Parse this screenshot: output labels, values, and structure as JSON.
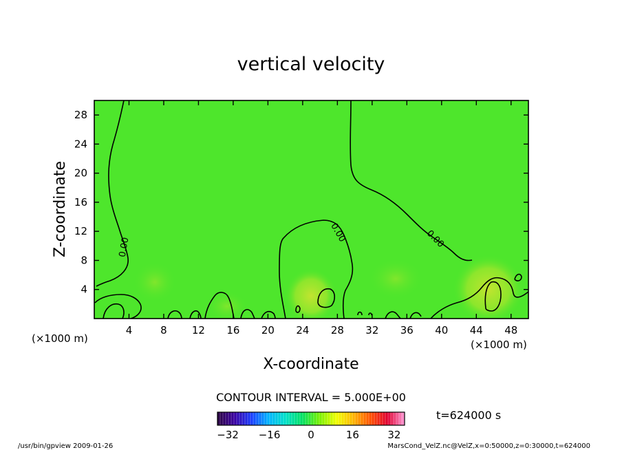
{
  "chart_data": {
    "type": "heatmap",
    "title": "vertical velocity",
    "xlabel": "X-coordinate",
    "ylabel": "Z-coordinate",
    "x_unit": "(×1000 m)",
    "y_unit": "(×1000 m)",
    "xlim": [
      0,
      50
    ],
    "ylim": [
      0,
      30
    ],
    "x_ticks": [
      4,
      8,
      12,
      16,
      20,
      24,
      28,
      32,
      36,
      40,
      44,
      48
    ],
    "y_ticks": [
      4,
      8,
      12,
      16,
      20,
      24,
      28
    ],
    "contour_interval_text": "CONTOUR INTERVAL = 5.000E+00",
    "contour_labels": [
      "0.00",
      "0.00",
      "0.00"
    ],
    "time_text": "t=624000 s",
    "colorbar": {
      "ticks": [
        -32,
        -16,
        0,
        16,
        32
      ],
      "range": [
        -36,
        36
      ],
      "colors": [
        "#2a0040",
        "#3a00a0",
        "#1a3cff",
        "#00b4ff",
        "#00e0c8",
        "#00e060",
        "#78f000",
        "#f0ff00",
        "#ffb400",
        "#ff5000",
        "#e00030",
        "#ff9ad8"
      ]
    },
    "field_colors": {
      "background": "#4ee62c",
      "warm": "#a8e62c",
      "warmest": "#c2e430"
    }
  },
  "footer": {
    "left": "/usr/bin/gpview  2009-01-26",
    "right": "MarsCond_VelZ.nc@VelZ,x=0:50000,z=0:30000,t=624000"
  }
}
